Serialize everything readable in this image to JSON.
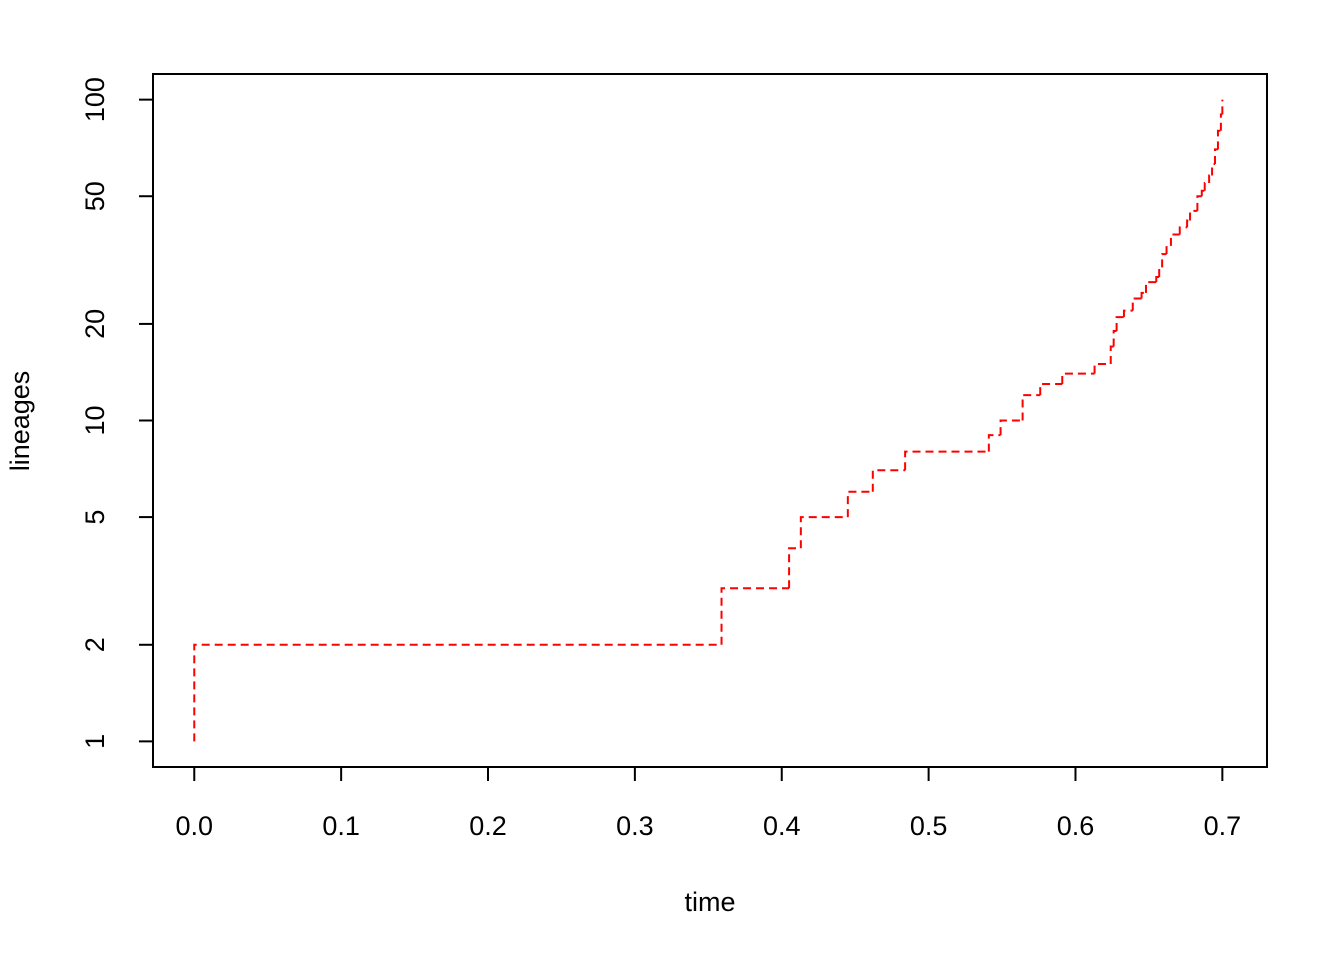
{
  "chart_data": {
    "type": "step",
    "xlabel": "time",
    "ylabel": "lineages",
    "x": [
      0,
      0,
      0.359,
      0.405,
      0.413,
      0.445,
      0.462,
      0.484,
      0.541,
      0.549,
      0.564,
      0.576,
      0.591,
      0.613,
      0.624,
      0.626,
      0.628,
      0.633,
      0.639,
      0.645,
      0.648,
      0.655,
      0.657,
      0.659,
      0.662,
      0.665,
      0.671,
      0.676,
      0.678,
      0.683,
      0.686,
      0.688,
      0.691,
      0.693,
      0.695,
      0.697,
      0.699,
      0.7
    ],
    "series": [
      {
        "color": "#ff0000",
        "values": [
          1,
          2,
          3,
          4,
          5,
          6,
          7,
          8,
          9,
          10,
          12,
          13,
          14,
          15,
          17,
          19,
          21,
          22,
          24,
          25,
          27,
          28,
          30,
          33,
          35,
          38,
          40,
          42,
          45,
          50,
          52,
          55,
          58,
          63,
          70,
          80,
          90,
          100
        ]
      }
    ],
    "xlim": [
      -0.0281,
      0.7304
    ],
    "xticks": [
      {
        "value": 0,
        "label": "0.0"
      },
      0.1,
      0.2,
      0.3,
      0.4,
      0.5,
      0.6,
      0.7
    ],
    "ylim": [
      0.832,
      120.2
    ],
    "ylog": true,
    "yticks": [
      1,
      2,
      5,
      10,
      20,
      50,
      100
    ]
  }
}
